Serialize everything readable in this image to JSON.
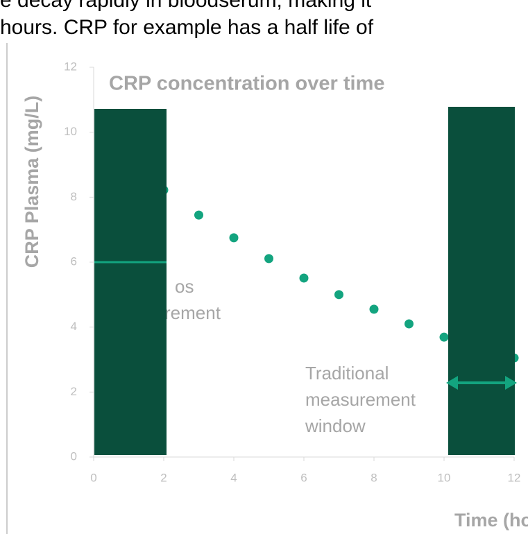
{
  "top_text": [
    "e decay rapidly in bloodserum, making it",
    "hours.  CRP for example has a half life of"
  ],
  "chart_data": {
    "type": "scatter",
    "title": "CRP concentration over time",
    "x_label": "Time (hours)",
    "y_label": "CRP Plasma (mg/L)",
    "x": [
      2,
      3,
      4,
      5,
      6,
      7,
      8,
      9,
      10,
      12
    ],
    "values": [
      8.22,
      7.45,
      6.75,
      6.11,
      5.51,
      5.0,
      4.55,
      4.1,
      3.69,
      3.05
    ],
    "color": "#13a47f",
    "xlim": [
      0,
      12
    ],
    "xticks": [
      0,
      2,
      4,
      6,
      8,
      10,
      12
    ],
    "ylim": [
      0,
      12
    ],
    "yticks": [
      0,
      2,
      4,
      6,
      8,
      10,
      12
    ],
    "annotations": [
      [
        "os",
        "rement"
      ],
      [
        "Traditional",
        "measurement",
        "window"
      ]
    ]
  }
}
